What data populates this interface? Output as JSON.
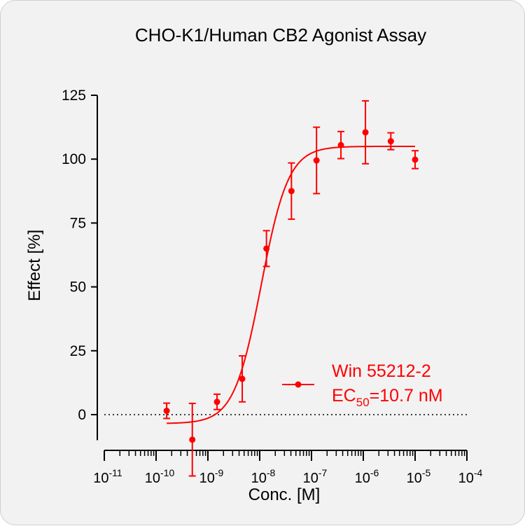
{
  "chart_data": {
    "type": "scatter",
    "title": "CHO-K1/Human CB2 Agonist Assay",
    "xlabel": "Conc. [M]",
    "ylabel": "Effect  [%]",
    "x_scale": "log",
    "xlim_exponent": [
      -11,
      -4
    ],
    "x_tick_base": "10",
    "x_tick_exponents": [
      "-11",
      "-10",
      "-9",
      "-8",
      "-7",
      "-6",
      "-5",
      "-4"
    ],
    "ylim": [
      -10,
      125
    ],
    "y_ticks": [
      "0",
      "25",
      "50",
      "75",
      "100",
      "125"
    ],
    "baseline_y": 0,
    "color": "#ff0000",
    "series": [
      {
        "name": "Win 55212-2",
        "ec50_label_prefix": "EC",
        "ec50_label_subscript": "50",
        "ec50_label_value": "=10.7 nM",
        "ec50_M": 1.07e-08,
        "fit": {
          "bottom": -3.5,
          "top": 105,
          "hill": 1.65
        },
        "points": [
          {
            "x": 1.6e-10,
            "y": 1.5,
            "err": 3.0
          },
          {
            "x": 5e-10,
            "y": -9.8,
            "err": 14.2
          },
          {
            "x": 1.5e-09,
            "y": 5.0,
            "err": 3.0
          },
          {
            "x": 4.6e-09,
            "y": 14.0,
            "err": 9.0
          },
          {
            "x": 1.35e-08,
            "y": 65.0,
            "err": 7.0
          },
          {
            "x": 4.1e-08,
            "y": 87.5,
            "err": 11.0
          },
          {
            "x": 1.25e-07,
            "y": 99.5,
            "err": 13.0
          },
          {
            "x": 3.7e-07,
            "y": 105.5,
            "err": 5.3
          },
          {
            "x": 1.1e-06,
            "y": 110.5,
            "err": 12.3
          },
          {
            "x": 3.4e-06,
            "y": 107.0,
            "err": 3.3
          },
          {
            "x": 1e-05,
            "y": 99.8,
            "err": 3.5
          }
        ]
      }
    ],
    "legend_position": "lower-right"
  }
}
